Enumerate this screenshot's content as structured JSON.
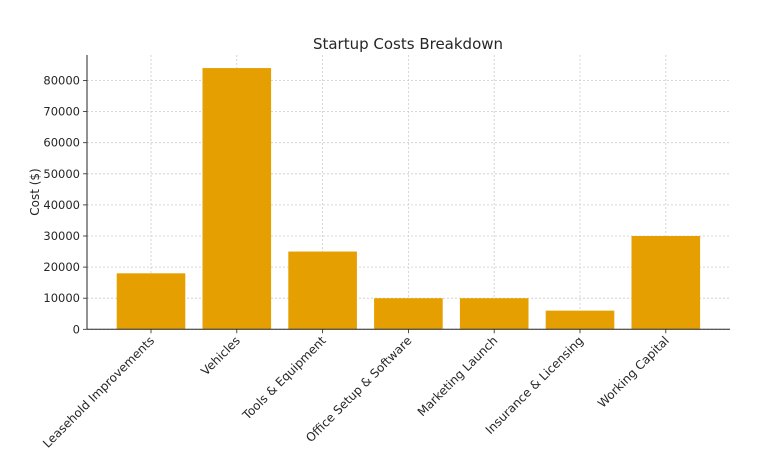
{
  "chart_data": {
    "type": "bar",
    "title": "Startup Costs Breakdown",
    "xlabel": "",
    "ylabel": "Cost ($)",
    "categories": [
      "Leasehold Improvements",
      "Vehicles",
      "Tools & Equipment",
      "Office Setup & Software",
      "Marketing Launch",
      "Insurance & Licensing",
      "Working Capital"
    ],
    "values": [
      18000,
      84000,
      25000,
      10000,
      10000,
      6000,
      30000
    ],
    "ylim": [
      0,
      88200
    ],
    "yticks": [
      0,
      10000,
      20000,
      30000,
      40000,
      50000,
      60000,
      70000,
      80000
    ],
    "grid": true,
    "bar_color": "#E69F00"
  }
}
